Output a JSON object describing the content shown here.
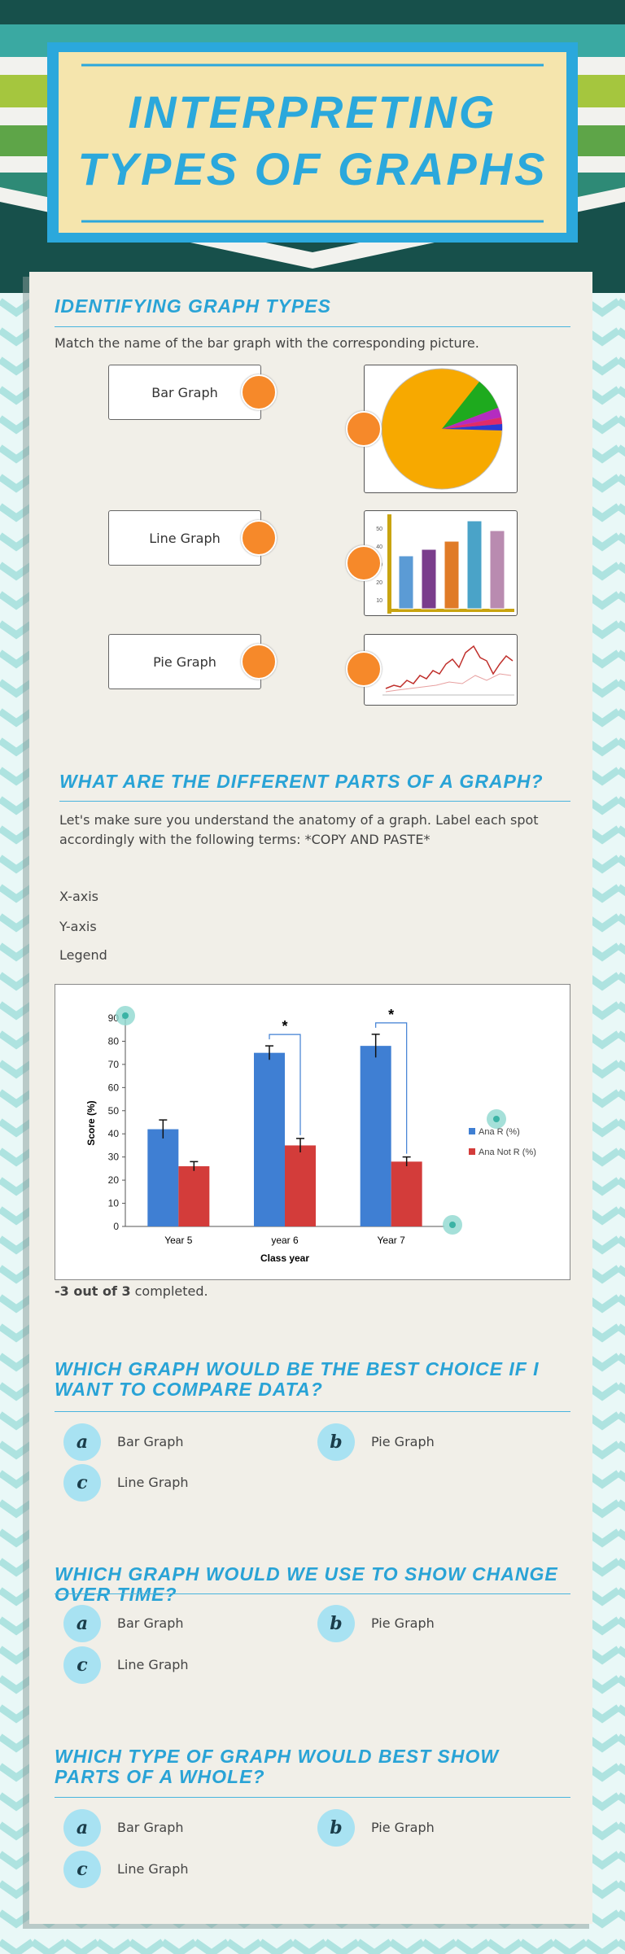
{
  "header": {
    "title_lines": [
      "INTERPRETING",
      "TYPES OF GRAPHS"
    ]
  },
  "matching": {
    "title": "IDENTIFYING GRAPH TYPES",
    "instruction": "Match the name of the bar graph with the corresponding picture.",
    "labels": [
      "Bar Graph",
      "Line Graph",
      "Pie Graph"
    ],
    "bar_thumbnail_ticks": [
      50,
      40,
      30,
      20,
      10
    ]
  },
  "anatomy": {
    "title": "WHAT ARE THE DIFFERENT PARTS OF A GRAPH?",
    "instruction": "Let's make sure you understand the anatomy of a graph. Label each spot accordingly with the following terms: *COPY AND PASTE*",
    "terms": [
      "X-axis",
      "Y-axis",
      "Legend"
    ],
    "chart": {
      "type": "bar",
      "categories": [
        "Year 5",
        "year 6",
        "Year 7"
      ],
      "series": [
        {
          "name": "Ana R (%)",
          "color": "#3f7fd3",
          "values": [
            42,
            75,
            78
          ],
          "errors": [
            4,
            3,
            5
          ]
        },
        {
          "name": "Ana Not R (%)",
          "color": "#d33c3a",
          "values": [
            26,
            35,
            28
          ],
          "errors": [
            2,
            3,
            2
          ]
        }
      ],
      "ylim": [
        0,
        90
      ],
      "yticks": [
        0,
        10,
        20,
        30,
        40,
        50,
        60,
        70,
        80,
        90
      ],
      "ylabel": "Score (%)",
      "xlabel": "Class year",
      "annotations": [
        {
          "category": 1,
          "text": "*"
        },
        {
          "category": 2,
          "text": "*"
        }
      ]
    },
    "progress": {
      "bold": "-3 out of 3",
      "rest": "completed."
    }
  },
  "questions": [
    {
      "title": "WHICH GRAPH WOULD BE THE BEST CHOICE IF I WANT TO COMPARE DATA?",
      "options": [
        {
          "letter": "a",
          "text": "Bar Graph"
        },
        {
          "letter": "b",
          "text": "Pie Graph"
        },
        {
          "letter": "c",
          "text": "Line Graph"
        }
      ]
    },
    {
      "title": "WHICH GRAPH WOULD WE USE TO SHOW CHANGE OVER TIME?",
      "options": [
        {
          "letter": "a",
          "text": "Bar Graph"
        },
        {
          "letter": "b",
          "text": "Pie Graph"
        },
        {
          "letter": "c",
          "text": "Line Graph"
        }
      ]
    },
    {
      "title": "WHICH TYPE OF GRAPH WOULD BEST SHOW PARTS OF A WHOLE?",
      "options": [
        {
          "letter": "a",
          "text": "Bar Graph"
        },
        {
          "letter": "b",
          "text": "Pie Graph"
        },
        {
          "letter": "c",
          "text": "Line Graph"
        }
      ]
    }
  ]
}
